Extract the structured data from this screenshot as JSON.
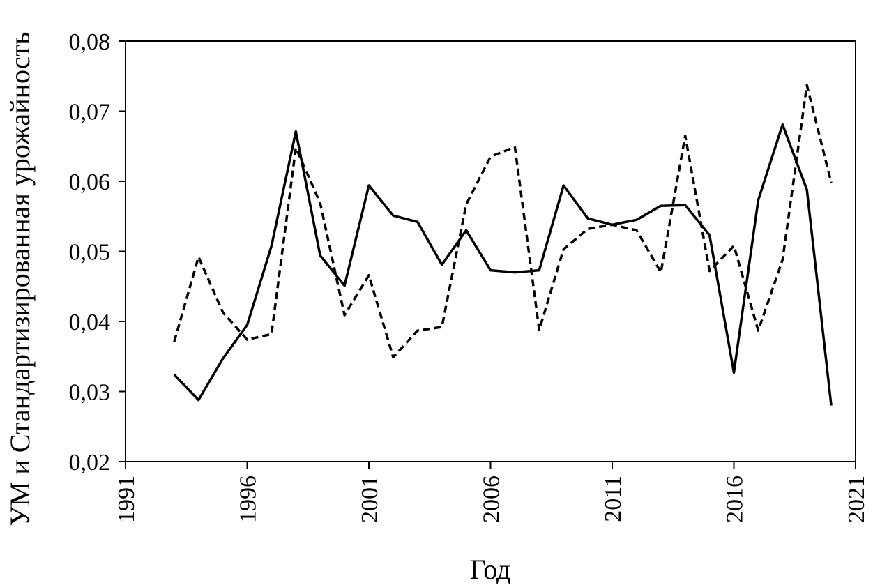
{
  "chart_data": {
    "type": "line",
    "title": "",
    "xlabel": "Год",
    "ylabel": "УМ и Стандартизированная урожайность",
    "xlim": [
      1991,
      2021
    ],
    "ylim": [
      0.02,
      0.08
    ],
    "x_ticks": [
      1991,
      1996,
      2001,
      2006,
      2011,
      2016,
      2021
    ],
    "y_ticks": [
      0.02,
      0.03,
      0.04,
      0.05,
      0.06,
      0.07,
      0.08
    ],
    "x_tick_labels": [
      "1991",
      "1996",
      "2001",
      "2006",
      "2011",
      "2016",
      "2021"
    ],
    "y_tick_labels": [
      "0,02",
      "0,03",
      "0,04",
      "0,05",
      "0,06",
      "0,07",
      "0,08"
    ],
    "grid": false,
    "legend": "none",
    "x": [
      1993,
      1994,
      1995,
      1996,
      1997,
      1998,
      1999,
      2000,
      2001,
      2002,
      2003,
      2004,
      2005,
      2006,
      2007,
      2008,
      2009,
      2010,
      2011,
      2012,
      2013,
      2014,
      2015,
      2016,
      2017,
      2018,
      2019,
      2020
    ],
    "series": [
      {
        "style": "solid",
        "color": "#000000",
        "values": [
          0.0324,
          0.0288,
          0.0347,
          0.0395,
          0.0508,
          0.0671,
          0.0494,
          0.0451,
          0.0594,
          0.0551,
          0.0542,
          0.0481,
          0.053,
          0.0473,
          0.047,
          0.0473,
          0.0594,
          0.0547,
          0.0538,
          0.0545,
          0.0565,
          0.0566,
          0.0523,
          0.0327,
          0.0573,
          0.0681,
          0.0588,
          0.028
        ]
      },
      {
        "style": "dashed",
        "color": "#000000",
        "values": [
          0.0371,
          0.0492,
          0.0413,
          0.0374,
          0.0382,
          0.0648,
          0.0569,
          0.0409,
          0.0466,
          0.0349,
          0.0387,
          0.0392,
          0.0567,
          0.0635,
          0.0649,
          0.0388,
          0.0503,
          0.0532,
          0.0538,
          0.053,
          0.047,
          0.0665,
          0.0472,
          0.0508,
          0.0387,
          0.0488,
          0.0737,
          0.0598
        ]
      }
    ]
  }
}
